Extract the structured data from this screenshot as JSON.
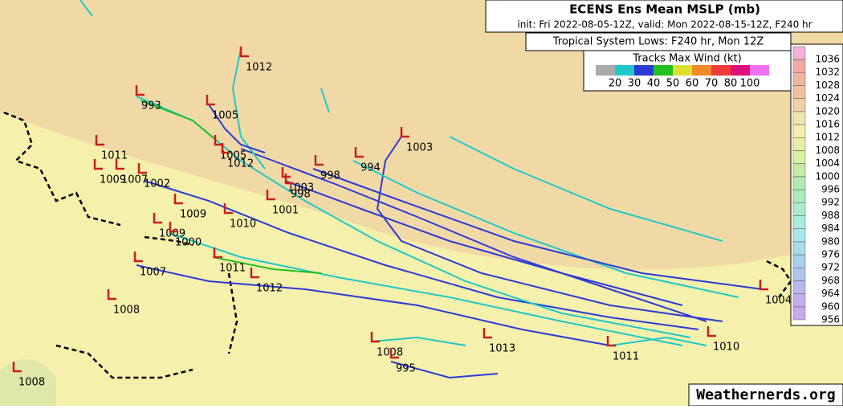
{
  "header": {
    "title": "ECENS Ens Mean MSLP (mb)",
    "subtitle": "init: Fri 2022-08-05-12Z, valid: Mon 2022-08-15-12Z, F240 hr"
  },
  "lows_title": "Tropical System Lows: F240 hr, Mon 12Z",
  "wind_legend": {
    "title": "Tracks Max Wind (kt)",
    "labels": [
      "20",
      "30",
      "40",
      "50",
      "60",
      "70",
      "80",
      "100"
    ]
  },
  "pressure_legend": {
    "labels": [
      "1036",
      "1032",
      "1028",
      "1024",
      "1020",
      "1016",
      "1012",
      "1008",
      "1004",
      "1000",
      "996",
      "992",
      "988",
      "984",
      "980",
      "976",
      "972",
      "968",
      "964",
      "960",
      "956"
    ]
  },
  "lows": [
    "1012",
    "993",
    "1005",
    "1003",
    "1011",
    "1005",
    "1012",
    "998",
    "994",
    "1009",
    "1007",
    "1002",
    "1003",
    "998",
    "1001",
    "1009",
    "1010",
    "1009",
    "1000",
    "1011",
    "1007",
    "1012",
    "1008",
    "1004",
    "1010",
    "1013",
    "1011",
    "1008",
    "995",
    "1008"
  ],
  "watermark": "Weathernerds.org"
}
